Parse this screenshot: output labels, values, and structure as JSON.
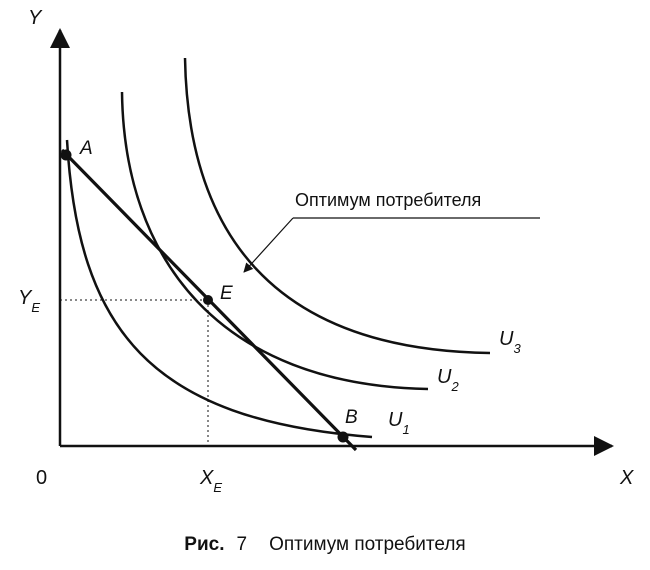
{
  "axes": {
    "y_label": "Y",
    "x_label": "X",
    "origin_label": "0"
  },
  "points": {
    "a": "A",
    "e": "E",
    "b": "B"
  },
  "curves": {
    "u1": {
      "base": "U",
      "sub": "1"
    },
    "u2": {
      "base": "U",
      "sub": "2"
    },
    "u3": {
      "base": "U",
      "sub": "3"
    }
  },
  "equilibrium": {
    "x": {
      "base": "X",
      "sub": "E"
    },
    "y": {
      "base": "Y",
      "sub": "E"
    }
  },
  "callout": "Оптимум потребителя",
  "caption": {
    "label": "Рис.",
    "number": "7",
    "text": "Оптимум потребителя"
  },
  "colors": {
    "ink": "#111111",
    "background": "#ffffff"
  }
}
